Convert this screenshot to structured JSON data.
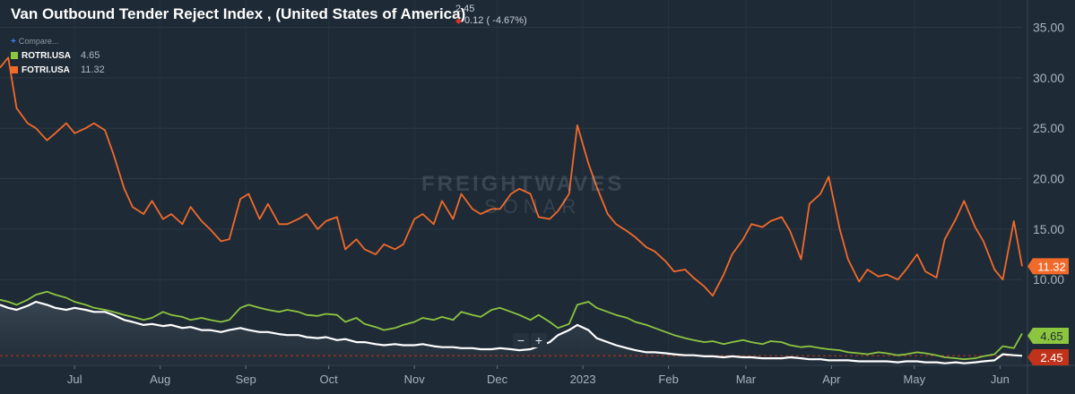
{
  "header": {
    "title": "Van Outbound Tender Reject Index , (United States of America)",
    "last_value": "2.45",
    "change": "0.12 ( -4.67%)"
  },
  "legend": {
    "compare_label": "Compare...",
    "items": [
      {
        "name": "ROTRI.USA",
        "value": "4.65",
        "color": "#8cc63f"
      },
      {
        "name": "FOTRI.USA",
        "value": "11.32",
        "color": "#f26a2a"
      }
    ]
  },
  "watermark": {
    "line1": "FREIGHTWAVES",
    "line2": "SONAR"
  },
  "zoom": {
    "minus": "−",
    "plus": "+"
  },
  "colors": {
    "background": "#1e2a36",
    "van": "#ffffff",
    "reefer": "#8cc63f",
    "flatbed": "#f26a2a",
    "last_badge": "#c0321a"
  },
  "chart_data": {
    "type": "line",
    "title": "Van Outbound Tender Reject Index , (United States of America)",
    "x_tick_labels": [
      "Jul",
      "Aug",
      "Sep",
      "Oct",
      "Nov",
      "Dec",
      "2023",
      "Feb",
      "Mar",
      "Apr",
      "May",
      "Jun"
    ],
    "y_tick_labels": [
      "10.00",
      "15.00",
      "20.00",
      "25.00",
      "30.00",
      "35.00"
    ],
    "ylim": [
      1.5,
      37
    ],
    "grid": true,
    "x": [
      "2022-06-04",
      "2022-06-07",
      "2022-06-10",
      "2022-06-14",
      "2022-06-17",
      "2022-06-21",
      "2022-06-24",
      "2022-06-28",
      "2022-07-01",
      "2022-07-05",
      "2022-07-08",
      "2022-07-12",
      "2022-07-15",
      "2022-07-19",
      "2022-07-22",
      "2022-07-26",
      "2022-07-29",
      "2022-08-02",
      "2022-08-05",
      "2022-08-09",
      "2022-08-12",
      "2022-08-16",
      "2022-08-19",
      "2022-08-23",
      "2022-08-26",
      "2022-08-30",
      "2022-09-02",
      "2022-09-06",
      "2022-09-09",
      "2022-09-13",
      "2022-09-16",
      "2022-09-20",
      "2022-09-23",
      "2022-09-27",
      "2022-09-30",
      "2022-10-04",
      "2022-10-07",
      "2022-10-11",
      "2022-10-14",
      "2022-10-18",
      "2022-10-21",
      "2022-10-25",
      "2022-10-28",
      "2022-11-01",
      "2022-11-04",
      "2022-11-08",
      "2022-11-11",
      "2022-11-15",
      "2022-11-18",
      "2022-11-22",
      "2022-11-25",
      "2022-11-29",
      "2022-12-02",
      "2022-12-06",
      "2022-12-09",
      "2022-12-13",
      "2022-12-16",
      "2022-12-20",
      "2022-12-23",
      "2022-12-27",
      "2022-12-30",
      "2023-01-03",
      "2023-01-06",
      "2023-01-10",
      "2023-01-13",
      "2023-01-17",
      "2023-01-20",
      "2023-01-24",
      "2023-01-27",
      "2023-01-31",
      "2023-02-03",
      "2023-02-07",
      "2023-02-10",
      "2023-02-14",
      "2023-02-17",
      "2023-02-21",
      "2023-02-24",
      "2023-02-28",
      "2023-03-03",
      "2023-03-07",
      "2023-03-10",
      "2023-03-14",
      "2023-03-17",
      "2023-03-21",
      "2023-03-24",
      "2023-03-28",
      "2023-03-31",
      "2023-04-04",
      "2023-04-07",
      "2023-04-11",
      "2023-04-14",
      "2023-04-18",
      "2023-04-21",
      "2023-04-25",
      "2023-04-28",
      "2023-05-02",
      "2023-05-05",
      "2023-05-09",
      "2023-05-12",
      "2023-05-16",
      "2023-05-19",
      "2023-05-23",
      "2023-05-26",
      "2023-05-30",
      "2023-06-02",
      "2023-06-06",
      "2023-06-09"
    ],
    "series": [
      {
        "name": "FOTRI.USA",
        "color": "#f26a2a",
        "values": [
          31.0,
          32.0,
          27.0,
          25.5,
          25.0,
          23.8,
          24.5,
          25.5,
          24.5,
          25.0,
          25.5,
          24.8,
          22.5,
          19.0,
          17.2,
          16.5,
          17.8,
          16.0,
          16.5,
          15.5,
          17.2,
          15.8,
          15.0,
          13.8,
          14.0,
          18.0,
          18.5,
          16.0,
          17.5,
          15.5,
          15.5,
          16.0,
          16.5,
          15.0,
          15.8,
          16.2,
          13.0,
          14.0,
          13.0,
          12.5,
          13.5,
          13.0,
          13.5,
          16.0,
          16.5,
          15.5,
          17.8,
          16.0,
          18.5,
          17.0,
          16.5,
          17.0,
          17.0,
          18.5,
          19.0,
          18.5,
          16.2,
          16.0,
          16.8,
          18.5,
          25.3,
          21.5,
          19.2,
          16.5,
          15.5,
          14.8,
          14.2,
          13.2,
          12.8,
          11.8,
          10.8,
          11.0,
          10.2,
          9.3,
          8.4,
          10.5,
          12.5,
          14.0,
          15.5,
          15.2,
          15.8,
          16.2,
          14.8,
          12.0,
          17.5,
          18.5,
          20.2,
          15.0,
          12.0,
          9.8,
          11.0,
          10.3,
          10.5,
          10.0,
          11.0,
          12.5,
          10.8,
          10.2,
          14.0,
          16.0,
          17.8,
          15.2,
          13.8,
          11.0,
          10.0,
          15.8,
          11.32
        ]
      },
      {
        "name": "ROTRI.USA",
        "color": "#8cc63f",
        "values": [
          8.0,
          7.8,
          7.5,
          8.0,
          8.5,
          8.8,
          8.5,
          8.2,
          7.8,
          7.5,
          7.2,
          7.0,
          6.8,
          6.5,
          6.3,
          6.0,
          6.2,
          6.8,
          6.5,
          6.3,
          6.0,
          6.2,
          6.0,
          5.8,
          6.0,
          7.2,
          7.5,
          7.2,
          7.0,
          6.8,
          7.0,
          6.8,
          6.5,
          6.4,
          6.6,
          6.5,
          5.8,
          6.2,
          5.6,
          5.3,
          5.0,
          5.2,
          5.5,
          5.8,
          6.2,
          6.0,
          6.3,
          6.0,
          6.8,
          6.5,
          6.3,
          7.0,
          7.2,
          6.8,
          6.5,
          6.0,
          6.5,
          5.8,
          5.2,
          5.6,
          7.5,
          7.8,
          7.2,
          6.8,
          6.5,
          6.2,
          5.8,
          5.5,
          5.2,
          4.8,
          4.5,
          4.2,
          4.0,
          3.8,
          3.9,
          3.6,
          3.8,
          4.0,
          3.8,
          3.6,
          3.9,
          3.8,
          3.5,
          3.3,
          3.4,
          3.2,
          3.1,
          3.0,
          2.8,
          2.7,
          2.6,
          2.8,
          2.7,
          2.5,
          2.6,
          2.8,
          2.7,
          2.5,
          2.3,
          2.2,
          2.1,
          2.2,
          2.4,
          2.6,
          3.4,
          3.2,
          4.65
        ]
      },
      {
        "name": "",
        "color": "#ffffff",
        "values": [
          7.5,
          7.2,
          7.0,
          7.4,
          7.8,
          7.5,
          7.2,
          7.0,
          7.2,
          7.0,
          6.8,
          6.8,
          6.5,
          6.0,
          5.8,
          5.5,
          5.6,
          5.4,
          5.5,
          5.2,
          5.3,
          5.0,
          5.0,
          4.8,
          5.0,
          5.2,
          5.0,
          4.8,
          4.8,
          4.6,
          4.5,
          4.5,
          4.3,
          4.2,
          4.3,
          4.0,
          4.1,
          3.8,
          3.8,
          3.6,
          3.5,
          3.6,
          3.5,
          3.5,
          3.6,
          3.4,
          3.3,
          3.3,
          3.2,
          3.2,
          3.1,
          3.1,
          3.2,
          3.1,
          3.0,
          3.1,
          3.4,
          3.8,
          4.5,
          5.0,
          5.5,
          5.0,
          4.2,
          3.8,
          3.5,
          3.2,
          3.0,
          2.8,
          2.8,
          2.7,
          2.6,
          2.5,
          2.5,
          2.4,
          2.4,
          2.3,
          2.4,
          2.3,
          2.3,
          2.2,
          2.2,
          2.2,
          2.3,
          2.2,
          2.1,
          2.1,
          2.0,
          2.0,
          2.0,
          1.9,
          1.9,
          1.9,
          1.9,
          1.8,
          1.9,
          1.9,
          1.8,
          1.8,
          1.7,
          1.8,
          1.7,
          1.8,
          1.9,
          2.0,
          2.6,
          2.5,
          2.45
        ]
      }
    ],
    "last_labels": [
      {
        "series": "FOTRI.USA",
        "text": "11.32"
      },
      {
        "series": "ROTRI.USA",
        "text": "4.65"
      },
      {
        "series": "",
        "text": "2.45"
      }
    ]
  }
}
